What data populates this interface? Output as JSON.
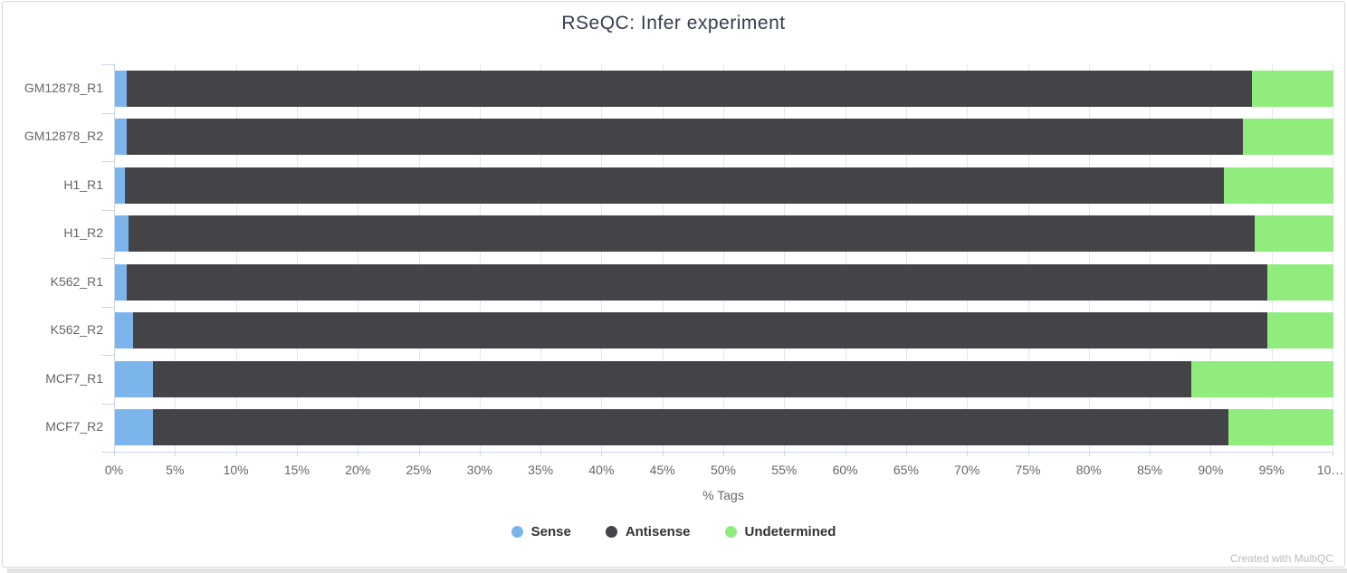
{
  "page": {
    "watermark": "Created with MultiQC"
  },
  "colors": {
    "sense": "#7cb5ec",
    "antisense": "#434348",
    "undetermined": "#90ed7d",
    "axis_line": "#ccd6eb",
    "grid_line": "#e6e6e6",
    "tick_text": "#666666",
    "title_text": "#343c4c",
    "legend_text": "#333333",
    "watermark_text": "#bbbbbb",
    "card_border": "#d9d9d9",
    "bottom_strip": "#e2e2e2"
  },
  "chart_data": {
    "type": "bar",
    "stacked": true,
    "orientation": "horizontal",
    "title": "RSeQC: Infer experiment",
    "xlabel": "% Tags",
    "xlim": [
      0,
      100
    ],
    "grid": true,
    "legend_position": "bottom",
    "x_tick_labels": [
      "0%",
      "5%",
      "10%",
      "15%",
      "20%",
      "25%",
      "30%",
      "35%",
      "40%",
      "45%",
      "50%",
      "55%",
      "60%",
      "65%",
      "70%",
      "75%",
      "80%",
      "85%",
      "90%",
      "95%",
      "10…"
    ],
    "categories": [
      "GM12878_R1",
      "GM12878_R2",
      "H1_R1",
      "H1_R2",
      "K562_R1",
      "K562_R2",
      "MCF7_R1",
      "MCF7_R2"
    ],
    "series": [
      {
        "name": "Sense",
        "color": "#7cb5ec",
        "values": [
          1.0,
          1.0,
          0.8,
          1.1,
          1.0,
          1.5,
          3.1,
          3.1
        ]
      },
      {
        "name": "Antisense",
        "color": "#434348",
        "values": [
          92.3,
          91.6,
          90.2,
          92.4,
          93.6,
          93.1,
          85.2,
          88.3
        ]
      },
      {
        "name": "Undetermined",
        "color": "#90ed7d",
        "values": [
          6.7,
          7.4,
          9.0,
          6.5,
          5.4,
          5.4,
          11.7,
          8.6
        ]
      }
    ]
  }
}
